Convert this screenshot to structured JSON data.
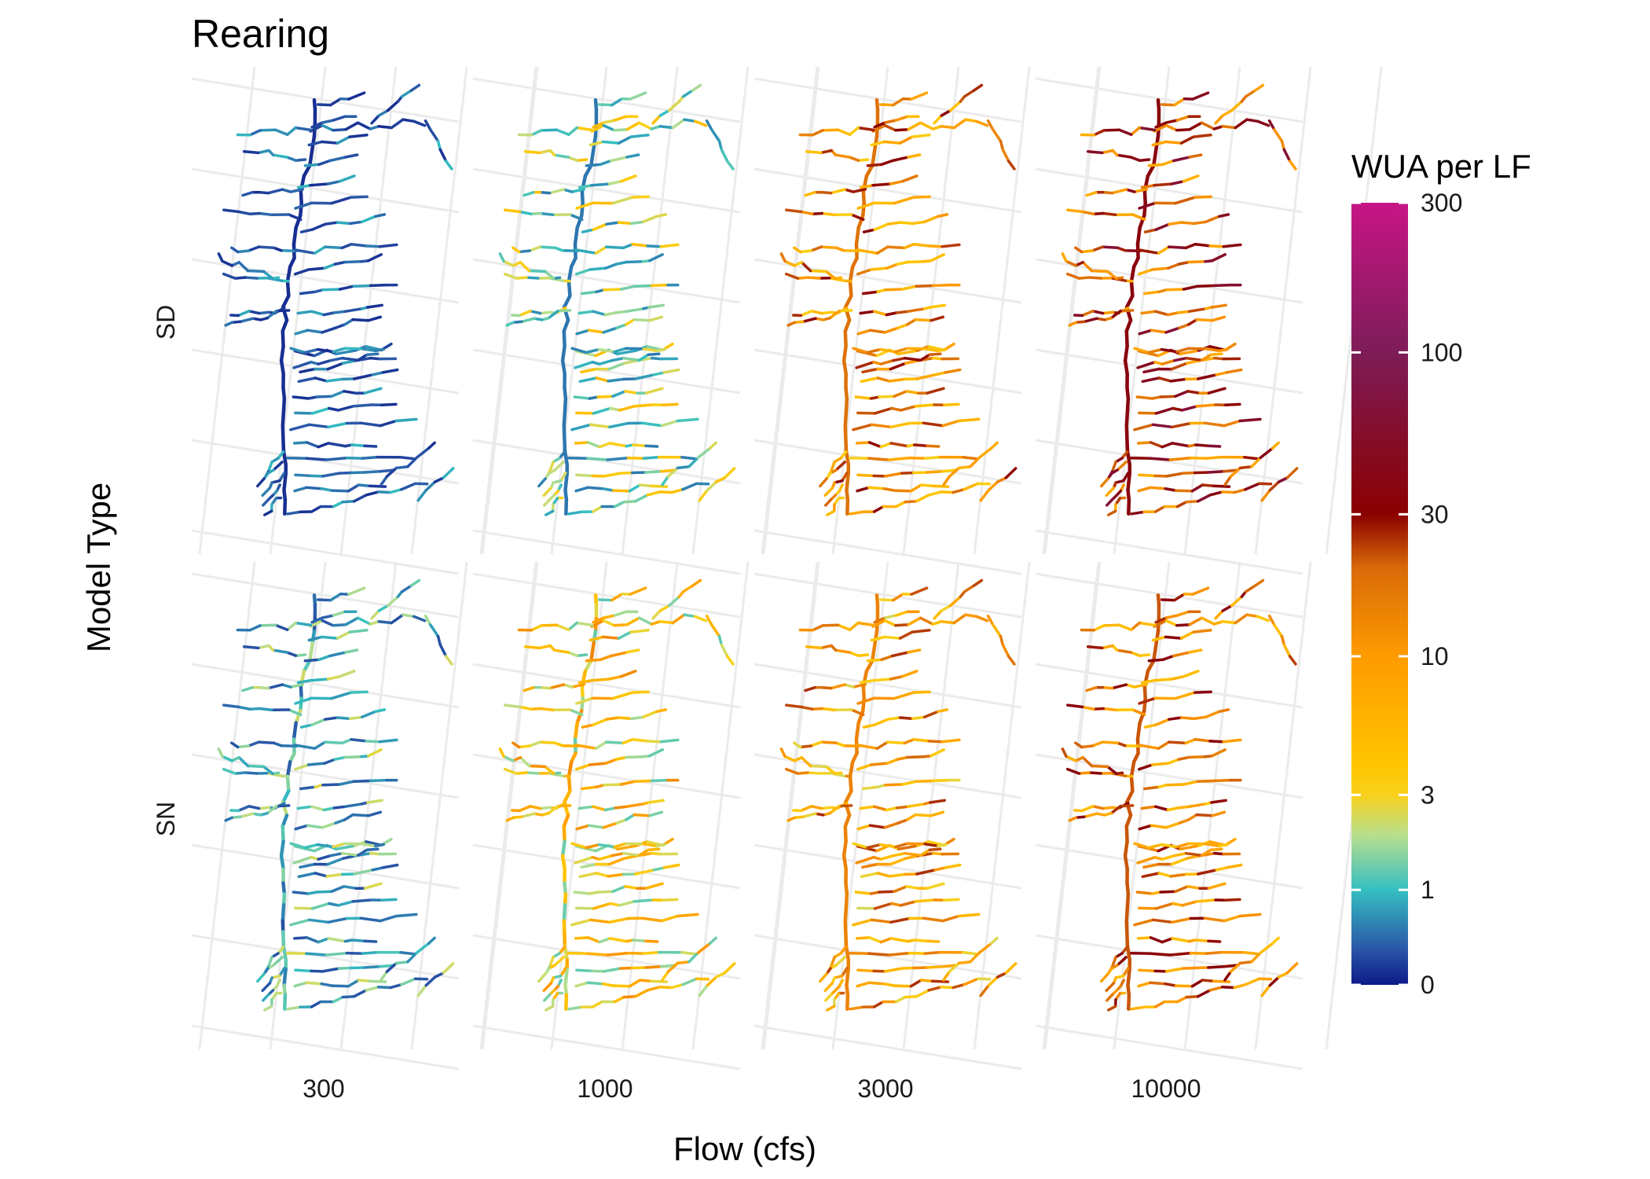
{
  "title": "Rearing",
  "x_axis_title": "Flow (cfs)",
  "y_axis_title": "Model Type",
  "rows": [
    {
      "label": "SD"
    },
    {
      "label": "SN"
    }
  ],
  "columns": [
    {
      "label": "300"
    },
    {
      "label": "1000"
    },
    {
      "label": "3000"
    },
    {
      "label": "10000"
    }
  ],
  "legend": {
    "title": "WUA per LF",
    "scale": "pseudo-log",
    "range": [
      0,
      300
    ],
    "ticks": [
      "300",
      "100",
      "30",
      "10",
      "3",
      "1",
      "0"
    ],
    "tick_values": [
      300,
      100,
      30,
      10,
      3,
      1,
      0
    ],
    "colors": [
      "#0d1a87",
      "#2a57a8",
      "#35bfc1",
      "#b9df8c",
      "#f9d11c",
      "#ffc400",
      "#ff9b00",
      "#d86a08",
      "#8b0000",
      "#7e1c58",
      "#c71585"
    ],
    "color_stops": [
      0,
      0.3,
      1,
      2,
      3,
      4,
      10,
      20,
      30,
      100,
      300
    ]
  },
  "chart_data": {
    "type": "map",
    "facets": "rows = Model Type (SD, SN), columns = Flow (cfs) (300, 1000, 3000, 10000)",
    "fill": "WUA per LF",
    "panel_levels": [
      [
        0.3,
        1.6,
        10,
        20
      ],
      [
        0.8,
        4,
        8,
        12
      ]
    ]
  }
}
